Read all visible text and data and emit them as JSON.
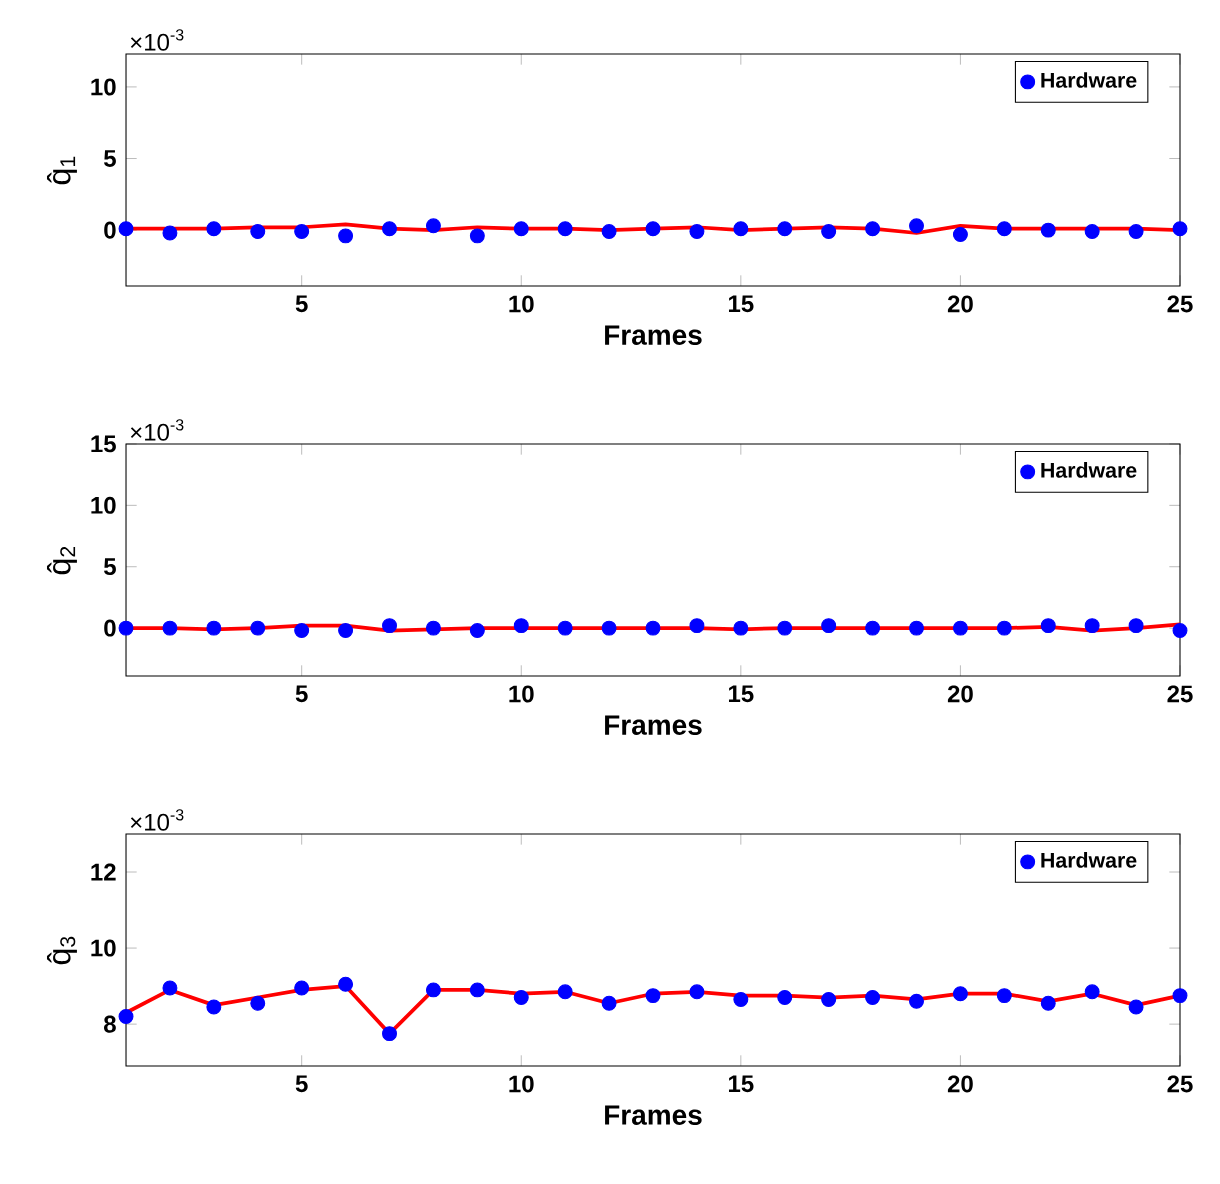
{
  "chart_data": [
    {
      "type": "scatter",
      "xlabel": "Frames",
      "ylabel": "q̂$_{1}$",
      "annotations": [
        "×10$^{-3}$"
      ],
      "legend": "top right",
      "grid": false,
      "xlim": [
        1,
        25
      ],
      "xticks": [
        5,
        10,
        15,
        20,
        25
      ],
      "ylim": [
        -3.9,
        12.3
      ],
      "yticks": [
        0,
        5,
        10
      ],
      "x": [
        1,
        2,
        3,
        4,
        5,
        6,
        7,
        8,
        9,
        10,
        11,
        12,
        13,
        14,
        15,
        16,
        17,
        18,
        19,
        20,
        21,
        22,
        23,
        24,
        25
      ],
      "series": [
        {
          "name": "Hardware",
          "type": "scatter",
          "marker": "circle",
          "color": "#0000ff",
          "values": [
            0.1,
            -0.2,
            0.1,
            -0.1,
            -0.1,
            -0.4,
            0.1,
            0.3,
            -0.4,
            0.1,
            0.1,
            -0.1,
            0.1,
            -0.1,
            0.1,
            0.1,
            -0.1,
            0.1,
            0.3,
            -0.3,
            0.1,
            0,
            -0.1,
            -0.1,
            0.1
          ]
        },
        {
          "type": "line",
          "line_style": "solid",
          "color": "#ff0000",
          "values": [
            0.1,
            0.1,
            0.1,
            0.2,
            0.2,
            0.4,
            0.1,
            0,
            0.2,
            0.1,
            0.1,
            0,
            0.1,
            0.2,
            0,
            0.1,
            0.2,
            0.1,
            -0.2,
            0.3,
            0.1,
            0.1,
            0.1,
            0.1,
            0
          ]
        }
      ]
    },
    {
      "type": "scatter",
      "xlabel": "Frames",
      "ylabel": "q̂$_{2}$",
      "annotations": [
        "×10$^{-3}$"
      ],
      "legend": "top right",
      "grid": false,
      "xlim": [
        1,
        25
      ],
      "xticks": [
        5,
        10,
        15,
        20,
        25
      ],
      "ylim": [
        -3.9,
        15
      ],
      "yticks": [
        0,
        5,
        10,
        15
      ],
      "x": [
        1,
        2,
        3,
        4,
        5,
        6,
        7,
        8,
        9,
        10,
        11,
        12,
        13,
        14,
        15,
        16,
        17,
        18,
        19,
        20,
        21,
        22,
        23,
        24,
        25
      ],
      "series": [
        {
          "name": "Hardware",
          "type": "scatter",
          "marker": "circle",
          "color": "#0000ff",
          "values": [
            0,
            0,
            0,
            0,
            -0.2,
            -0.2,
            0.2,
            0,
            -0.2,
            0.2,
            0,
            0,
            0,
            0.2,
            0,
            0,
            0.2,
            0,
            0,
            0,
            0,
            0.2,
            0.2,
            0.2,
            -0.2
          ]
        },
        {
          "type": "line",
          "line_style": "solid",
          "color": "#ff0000",
          "values": [
            0,
            0,
            -0.1,
            0,
            0.2,
            0.2,
            -0.2,
            -0.1,
            0,
            0,
            0,
            0,
            0,
            0,
            -0.1,
            0,
            0,
            0,
            0,
            0,
            0,
            0.1,
            -0.2,
            0,
            0.3
          ]
        }
      ]
    },
    {
      "type": "scatter",
      "xlabel": "Frames",
      "ylabel": "q̂$_{3}$",
      "annotations": [
        "×10$^{-3}$"
      ],
      "legend": "top right",
      "grid": false,
      "xlim": [
        1,
        25
      ],
      "xticks": [
        5,
        10,
        15,
        20,
        25
      ],
      "ylim": [
        6.9,
        13
      ],
      "yticks": [
        8,
        10,
        12
      ],
      "x": [
        1,
        2,
        3,
        4,
        5,
        6,
        7,
        8,
        9,
        10,
        11,
        12,
        13,
        14,
        15,
        16,
        17,
        18,
        19,
        20,
        21,
        22,
        23,
        24,
        25
      ],
      "series": [
        {
          "name": "Hardware",
          "type": "scatter",
          "marker": "circle",
          "color": "#0000ff",
          "values": [
            8.2,
            8.95,
            8.45,
            8.55,
            8.95,
            9.05,
            7.75,
            8.9,
            8.9,
            8.7,
            8.85,
            8.55,
            8.75,
            8.85,
            8.65,
            8.7,
            8.65,
            8.7,
            8.6,
            8.8,
            8.75,
            8.55,
            8.85,
            8.45,
            8.75
          ]
        },
        {
          "type": "line",
          "line_style": "solid",
          "color": "#ff0000",
          "values": [
            8.3,
            8.9,
            8.5,
            8.7,
            8.9,
            9.0,
            7.75,
            8.9,
            8.9,
            8.8,
            8.85,
            8.55,
            8.8,
            8.85,
            8.75,
            8.75,
            8.7,
            8.75,
            8.65,
            8.8,
            8.8,
            8.6,
            8.8,
            8.5,
            8.75
          ]
        }
      ]
    }
  ]
}
